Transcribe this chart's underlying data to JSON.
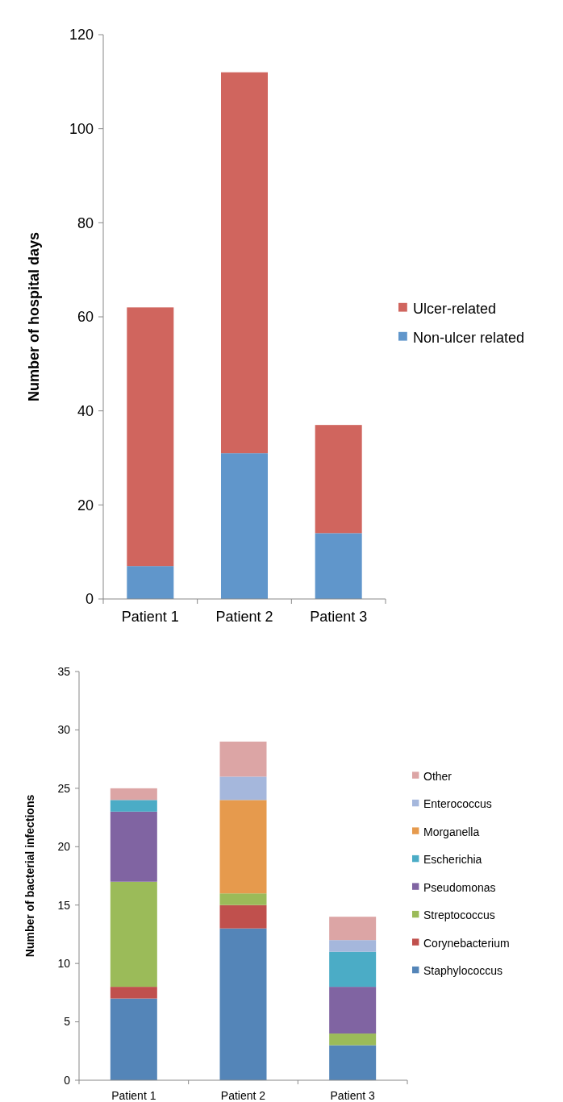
{
  "chart_data": [
    {
      "type": "bar",
      "stacked": true,
      "ylabel": "Number of hospital days",
      "categories": [
        "Patient 1",
        "Patient 2",
        "Patient 3"
      ],
      "series": [
        {
          "name": "Non-ulcer related",
          "color": "#6096cb",
          "values": [
            7,
            31,
            14
          ]
        },
        {
          "name": "Ulcer-related",
          "color": "#d0655e",
          "values": [
            55,
            81,
            23
          ]
        }
      ],
      "ylim": [
        0,
        120
      ],
      "yticks": [
        0,
        20,
        40,
        60,
        80,
        100,
        120
      ],
      "grid": false,
      "legend": "right"
    },
    {
      "type": "bar",
      "stacked": true,
      "ylabel": "Number of bacterial infections",
      "categories": [
        "Patient 1",
        "Patient 2",
        "Patient 3"
      ],
      "series": [
        {
          "name": "Staphylococcus",
          "color": "#5485b8",
          "values": [
            7,
            13,
            3
          ]
        },
        {
          "name": "Corynebacterium",
          "color": "#c0504d",
          "values": [
            1,
            2,
            0
          ]
        },
        {
          "name": "Streptococcus",
          "color": "#9bbb59",
          "values": [
            9,
            1,
            1
          ]
        },
        {
          "name": "Pseudomonas",
          "color": "#8064a2",
          "values": [
            6,
            0,
            4
          ]
        },
        {
          "name": "Escherichia",
          "color": "#4bacc6",
          "values": [
            1,
            0,
            3
          ]
        },
        {
          "name": "Morganella",
          "color": "#e69a4d",
          "values": [
            0,
            8,
            0
          ]
        },
        {
          "name": "Enterococcus",
          "color": "#a5b7dc",
          "values": [
            0,
            2,
            1
          ]
        },
        {
          "name": "Other",
          "color": "#dca5a5",
          "values": [
            1,
            3,
            2
          ]
        }
      ],
      "ylim": [
        0,
        35
      ],
      "yticks": [
        0,
        5,
        10,
        15,
        20,
        25,
        30,
        35
      ],
      "grid": false,
      "legend": "right"
    }
  ]
}
